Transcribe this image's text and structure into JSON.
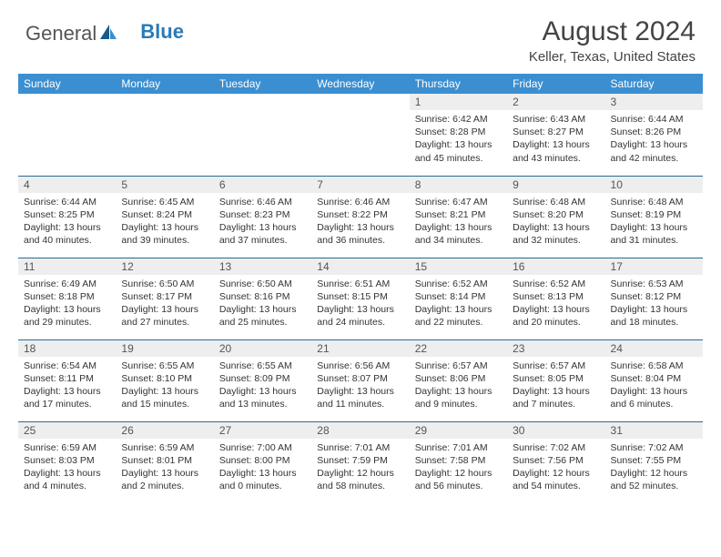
{
  "brand": {
    "part1": "General",
    "part2": "Blue"
  },
  "header": {
    "month_year": "August 2024",
    "location": "Keller, Texas, United States"
  },
  "colors": {
    "header_bg": "#3b8fd1",
    "daynum_bg": "#eeeeee",
    "border": "#2a6a9a",
    "text": "#333333",
    "brand_blue": "#2a7bb8"
  },
  "weekdays": [
    "Sunday",
    "Monday",
    "Tuesday",
    "Wednesday",
    "Thursday",
    "Friday",
    "Saturday"
  ],
  "weeks": [
    [
      null,
      null,
      null,
      null,
      {
        "day": "1",
        "sunrise": "Sunrise: 6:42 AM",
        "sunset": "Sunset: 8:28 PM",
        "daylight1": "Daylight: 13 hours",
        "daylight2": "and 45 minutes."
      },
      {
        "day": "2",
        "sunrise": "Sunrise: 6:43 AM",
        "sunset": "Sunset: 8:27 PM",
        "daylight1": "Daylight: 13 hours",
        "daylight2": "and 43 minutes."
      },
      {
        "day": "3",
        "sunrise": "Sunrise: 6:44 AM",
        "sunset": "Sunset: 8:26 PM",
        "daylight1": "Daylight: 13 hours",
        "daylight2": "and 42 minutes."
      }
    ],
    [
      {
        "day": "4",
        "sunrise": "Sunrise: 6:44 AM",
        "sunset": "Sunset: 8:25 PM",
        "daylight1": "Daylight: 13 hours",
        "daylight2": "and 40 minutes."
      },
      {
        "day": "5",
        "sunrise": "Sunrise: 6:45 AM",
        "sunset": "Sunset: 8:24 PM",
        "daylight1": "Daylight: 13 hours",
        "daylight2": "and 39 minutes."
      },
      {
        "day": "6",
        "sunrise": "Sunrise: 6:46 AM",
        "sunset": "Sunset: 8:23 PM",
        "daylight1": "Daylight: 13 hours",
        "daylight2": "and 37 minutes."
      },
      {
        "day": "7",
        "sunrise": "Sunrise: 6:46 AM",
        "sunset": "Sunset: 8:22 PM",
        "daylight1": "Daylight: 13 hours",
        "daylight2": "and 36 minutes."
      },
      {
        "day": "8",
        "sunrise": "Sunrise: 6:47 AM",
        "sunset": "Sunset: 8:21 PM",
        "daylight1": "Daylight: 13 hours",
        "daylight2": "and 34 minutes."
      },
      {
        "day": "9",
        "sunrise": "Sunrise: 6:48 AM",
        "sunset": "Sunset: 8:20 PM",
        "daylight1": "Daylight: 13 hours",
        "daylight2": "and 32 minutes."
      },
      {
        "day": "10",
        "sunrise": "Sunrise: 6:48 AM",
        "sunset": "Sunset: 8:19 PM",
        "daylight1": "Daylight: 13 hours",
        "daylight2": "and 31 minutes."
      }
    ],
    [
      {
        "day": "11",
        "sunrise": "Sunrise: 6:49 AM",
        "sunset": "Sunset: 8:18 PM",
        "daylight1": "Daylight: 13 hours",
        "daylight2": "and 29 minutes."
      },
      {
        "day": "12",
        "sunrise": "Sunrise: 6:50 AM",
        "sunset": "Sunset: 8:17 PM",
        "daylight1": "Daylight: 13 hours",
        "daylight2": "and 27 minutes."
      },
      {
        "day": "13",
        "sunrise": "Sunrise: 6:50 AM",
        "sunset": "Sunset: 8:16 PM",
        "daylight1": "Daylight: 13 hours",
        "daylight2": "and 25 minutes."
      },
      {
        "day": "14",
        "sunrise": "Sunrise: 6:51 AM",
        "sunset": "Sunset: 8:15 PM",
        "daylight1": "Daylight: 13 hours",
        "daylight2": "and 24 minutes."
      },
      {
        "day": "15",
        "sunrise": "Sunrise: 6:52 AM",
        "sunset": "Sunset: 8:14 PM",
        "daylight1": "Daylight: 13 hours",
        "daylight2": "and 22 minutes."
      },
      {
        "day": "16",
        "sunrise": "Sunrise: 6:52 AM",
        "sunset": "Sunset: 8:13 PM",
        "daylight1": "Daylight: 13 hours",
        "daylight2": "and 20 minutes."
      },
      {
        "day": "17",
        "sunrise": "Sunrise: 6:53 AM",
        "sunset": "Sunset: 8:12 PM",
        "daylight1": "Daylight: 13 hours",
        "daylight2": "and 18 minutes."
      }
    ],
    [
      {
        "day": "18",
        "sunrise": "Sunrise: 6:54 AM",
        "sunset": "Sunset: 8:11 PM",
        "daylight1": "Daylight: 13 hours",
        "daylight2": "and 17 minutes."
      },
      {
        "day": "19",
        "sunrise": "Sunrise: 6:55 AM",
        "sunset": "Sunset: 8:10 PM",
        "daylight1": "Daylight: 13 hours",
        "daylight2": "and 15 minutes."
      },
      {
        "day": "20",
        "sunrise": "Sunrise: 6:55 AM",
        "sunset": "Sunset: 8:09 PM",
        "daylight1": "Daylight: 13 hours",
        "daylight2": "and 13 minutes."
      },
      {
        "day": "21",
        "sunrise": "Sunrise: 6:56 AM",
        "sunset": "Sunset: 8:07 PM",
        "daylight1": "Daylight: 13 hours",
        "daylight2": "and 11 minutes."
      },
      {
        "day": "22",
        "sunrise": "Sunrise: 6:57 AM",
        "sunset": "Sunset: 8:06 PM",
        "daylight1": "Daylight: 13 hours",
        "daylight2": "and 9 minutes."
      },
      {
        "day": "23",
        "sunrise": "Sunrise: 6:57 AM",
        "sunset": "Sunset: 8:05 PM",
        "daylight1": "Daylight: 13 hours",
        "daylight2": "and 7 minutes."
      },
      {
        "day": "24",
        "sunrise": "Sunrise: 6:58 AM",
        "sunset": "Sunset: 8:04 PM",
        "daylight1": "Daylight: 13 hours",
        "daylight2": "and 6 minutes."
      }
    ],
    [
      {
        "day": "25",
        "sunrise": "Sunrise: 6:59 AM",
        "sunset": "Sunset: 8:03 PM",
        "daylight1": "Daylight: 13 hours",
        "daylight2": "and 4 minutes."
      },
      {
        "day": "26",
        "sunrise": "Sunrise: 6:59 AM",
        "sunset": "Sunset: 8:01 PM",
        "daylight1": "Daylight: 13 hours",
        "daylight2": "and 2 minutes."
      },
      {
        "day": "27",
        "sunrise": "Sunrise: 7:00 AM",
        "sunset": "Sunset: 8:00 PM",
        "daylight1": "Daylight: 13 hours",
        "daylight2": "and 0 minutes."
      },
      {
        "day": "28",
        "sunrise": "Sunrise: 7:01 AM",
        "sunset": "Sunset: 7:59 PM",
        "daylight1": "Daylight: 12 hours",
        "daylight2": "and 58 minutes."
      },
      {
        "day": "29",
        "sunrise": "Sunrise: 7:01 AM",
        "sunset": "Sunset: 7:58 PM",
        "daylight1": "Daylight: 12 hours",
        "daylight2": "and 56 minutes."
      },
      {
        "day": "30",
        "sunrise": "Sunrise: 7:02 AM",
        "sunset": "Sunset: 7:56 PM",
        "daylight1": "Daylight: 12 hours",
        "daylight2": "and 54 minutes."
      },
      {
        "day": "31",
        "sunrise": "Sunrise: 7:02 AM",
        "sunset": "Sunset: 7:55 PM",
        "daylight1": "Daylight: 12 hours",
        "daylight2": "and 52 minutes."
      }
    ]
  ]
}
